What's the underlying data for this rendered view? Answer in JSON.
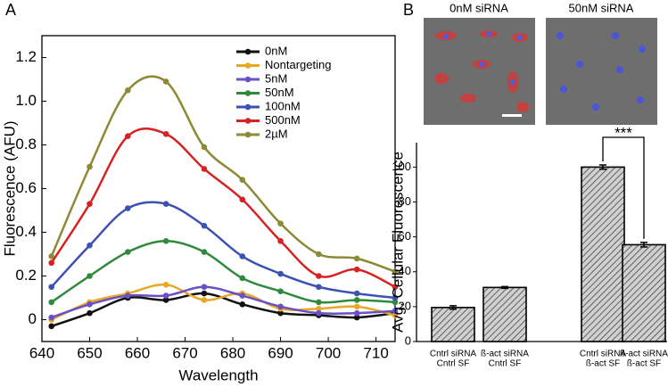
{
  "chart_data": [
    {
      "type": "line",
      "panel_label": "A",
      "x_label": "Wavelength",
      "y_label": "Fluorescence (AFU)",
      "x": [
        642,
        650,
        658,
        666,
        674,
        682,
        690,
        698,
        706,
        714
      ],
      "xlim": [
        640,
        714
      ],
      "xticks": [
        640,
        650,
        660,
        670,
        680,
        690,
        700,
        710
      ],
      "ylim": [
        -0.1,
        1.3
      ],
      "yticks": [
        0,
        0.2,
        0.4,
        0.6,
        0.8,
        {
          "value": 1,
          "label": "1.0"
        },
        1.2
      ],
      "series": [
        {
          "name": "0nM",
          "color": "#111111",
          "values": [
            -0.03,
            0.03,
            0.1,
            0.09,
            0.12,
            0.07,
            0.03,
            0.02,
            0.01,
            0.03
          ]
        },
        {
          "name": "Nontargeting",
          "color": "#e8a825",
          "values": [
            0.0,
            0.08,
            0.12,
            0.16,
            0.09,
            0.12,
            0.05,
            0.05,
            0.06,
            0.02
          ]
        },
        {
          "name": "5nM",
          "color": "#6b4fc4",
          "values": [
            0.01,
            0.07,
            0.11,
            0.11,
            0.15,
            0.11,
            0.06,
            0.03,
            0.03,
            0.04
          ]
        },
        {
          "name": "50nM",
          "color": "#2f8a3c",
          "values": [
            0.08,
            0.2,
            0.31,
            0.36,
            0.31,
            0.19,
            0.13,
            0.08,
            0.09,
            0.08
          ]
        },
        {
          "name": "100nM",
          "color": "#3c52b2",
          "values": [
            0.15,
            0.34,
            0.51,
            0.53,
            0.43,
            0.29,
            0.21,
            0.15,
            0.12,
            0.1
          ]
        },
        {
          "name": "500nM",
          "color": "#d62222",
          "values": [
            0.26,
            0.53,
            0.84,
            0.85,
            0.69,
            0.55,
            0.36,
            0.2,
            0.23,
            0.15
          ]
        },
        {
          "name": "2µM",
          "color": "#8c8a35",
          "values": [
            0.29,
            0.7,
            1.05,
            1.09,
            0.79,
            0.64,
            0.44,
            0.3,
            0.28,
            0.22
          ]
        }
      ]
    },
    {
      "type": "bar",
      "panel_label": "B",
      "image_labels": [
        "0nM siRNA",
        "50nM siRNA"
      ],
      "y_label": "Avg. Cellular Fluorescence",
      "categories": [
        [
          "Cntrl siRNA",
          "Cntrl SF"
        ],
        [
          "ß-act siRNA",
          "Cntrl SF"
        ],
        [
          "Cntrl siRNA",
          "ß-act SF"
        ],
        [
          "ß-act siRNA",
          "ß-act SF"
        ]
      ],
      "values": [
        19.5,
        31,
        100,
        55.5
      ],
      "errors": [
        1,
        0.5,
        1.2,
        1.3
      ],
      "ylim": [
        0,
        114
      ],
      "yticks": [
        0,
        20,
        40,
        60,
        80,
        100
      ],
      "annotation": "***"
    }
  ]
}
